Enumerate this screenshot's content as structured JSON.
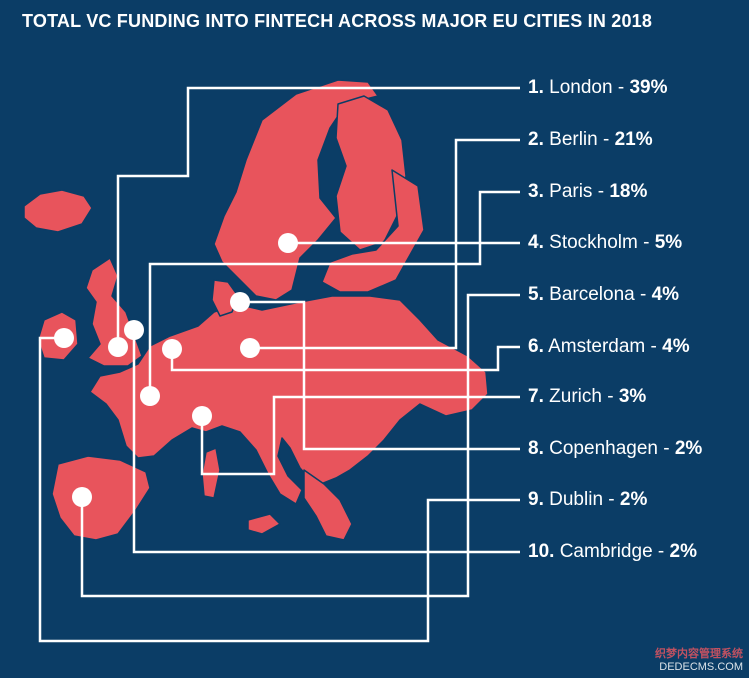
{
  "title": "TOTAL VC FUNDING INTO FINTECH ACROSS MAJOR EU CITIES IN 2018",
  "colors": {
    "background": "#0b3d66",
    "land": "#e8545c",
    "lines": "#ffffff"
  },
  "cities": [
    {
      "rank": "1.",
      "name": "London",
      "share": "39%"
    },
    {
      "rank": "2.",
      "name": "Berlin",
      "share": "21%"
    },
    {
      "rank": "3.",
      "name": "Paris",
      "share": "18%"
    },
    {
      "rank": "4.",
      "name": "Stockholm",
      "share": "5%"
    },
    {
      "rank": "5.",
      "name": "Barcelona",
      "share": "4%"
    },
    {
      "rank": "6.",
      "name": "Amsterdam",
      "share": "4%"
    },
    {
      "rank": "7.",
      "name": "Zurich",
      "share": "3%"
    },
    {
      "rank": "8.",
      "name": "Copenhagen",
      "share": "2%"
    },
    {
      "rank": "9.",
      "name": "Dublin",
      "share": "2%"
    },
    {
      "rank": "10.",
      "name": "Cambridge",
      "share": "2%"
    }
  ],
  "watermark": {
    "line1": "织梦内容管理系统",
    "line2": "DEDECMS.COM"
  }
}
